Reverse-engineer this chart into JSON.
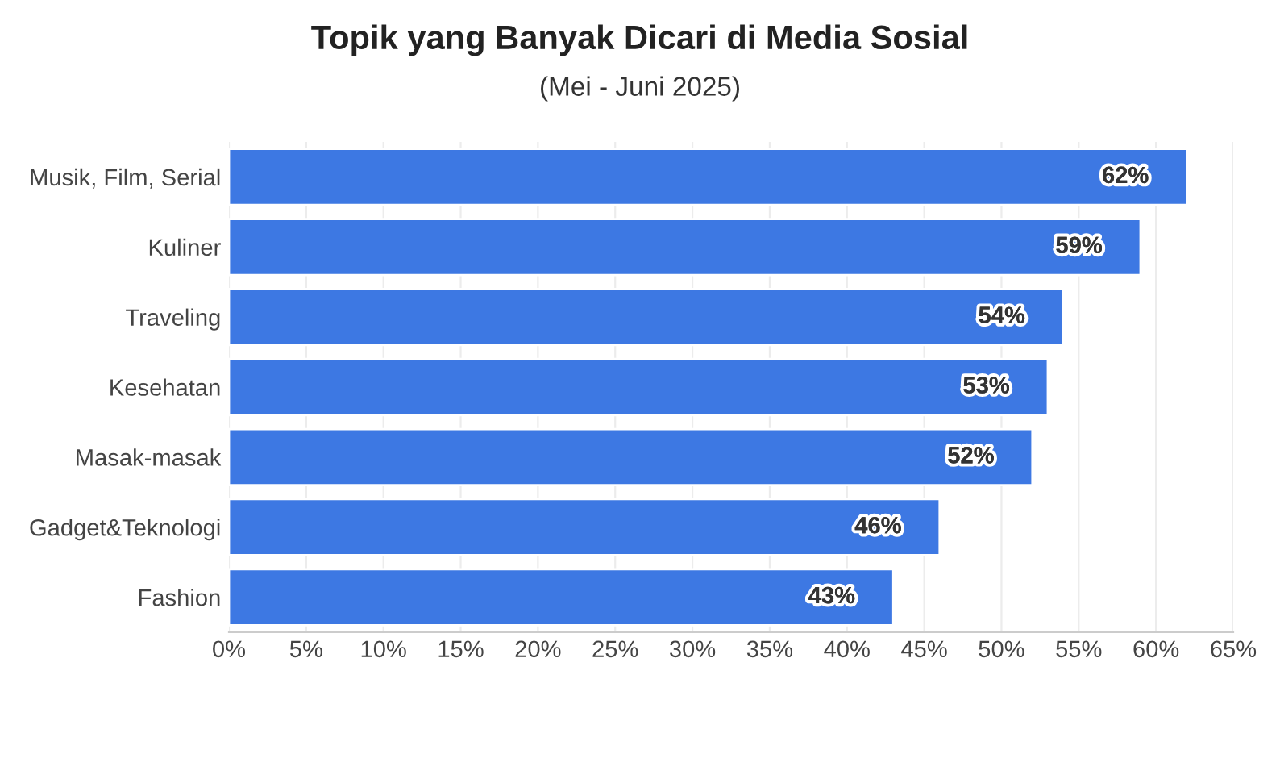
{
  "chart_data": {
    "type": "bar",
    "orientation": "horizontal",
    "title": "Topik yang Banyak Dicari di Media Sosial",
    "subtitle": "(Mei - Juni 2025)",
    "categories": [
      "Musik, Film, Serial",
      "Kuliner",
      "Traveling",
      "Kesehatan",
      "Masak-masak",
      "Gadget&Teknologi",
      "Fashion"
    ],
    "values": [
      62,
      59,
      54,
      53,
      52,
      46,
      43
    ],
    "value_labels": [
      "62%",
      "59%",
      "54%",
      "53%",
      "52%",
      "46%",
      "43%"
    ],
    "color": "#3d78e3",
    "xlim": [
      0,
      65
    ],
    "xticks": [
      {
        "value": 0,
        "label": "0%"
      },
      {
        "value": 5,
        "label": "5%"
      },
      {
        "value": 10,
        "label": "10%"
      },
      {
        "value": 15,
        "label": "15%"
      },
      {
        "value": 20,
        "label": "20%"
      },
      {
        "value": 25,
        "label": "25%"
      },
      {
        "value": 30,
        "label": "30%"
      },
      {
        "value": 35,
        "label": "35%"
      },
      {
        "value": 40,
        "label": "40%"
      },
      {
        "value": 45,
        "label": "45%"
      },
      {
        "value": 50,
        "label": "50%"
      },
      {
        "value": 55,
        "label": "55%"
      },
      {
        "value": 60,
        "label": "60%"
      },
      {
        "value": 65,
        "label": "65%"
      }
    ],
    "grid": "x",
    "legend": false
  }
}
